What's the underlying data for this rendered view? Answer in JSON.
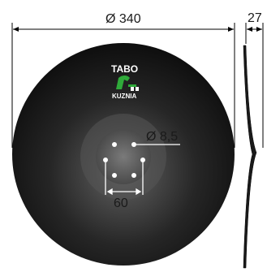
{
  "dimensions": {
    "diameter": "Ø 340",
    "thickness": "27",
    "hole_diameter": "Ø 8,5",
    "hole_spacing": "60"
  },
  "logo": {
    "brand": "TABO",
    "subtitle": "KUZNIA",
    "accent_color": "#2faa3a"
  },
  "colors": {
    "disc_dark": "#141414",
    "disc_light": "#5a5a5a",
    "line": "#000000"
  }
}
